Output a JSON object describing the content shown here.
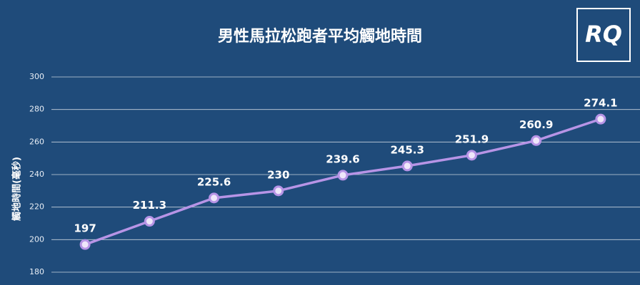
{
  "chart_data": {
    "type": "line",
    "title": "男性馬拉松跑者平均觸地時間",
    "y_label": "觸地時間(毫秒)",
    "logo": "RQ",
    "values": [
      197,
      211.3,
      225.6,
      230,
      239.6,
      245.3,
      251.9,
      260.9,
      274.1
    ],
    "color": "#b794e6",
    "ylim": [
      180,
      300
    ],
    "yticks": [
      180,
      200,
      220,
      240,
      260,
      280,
      300
    ],
    "grid": true
  }
}
